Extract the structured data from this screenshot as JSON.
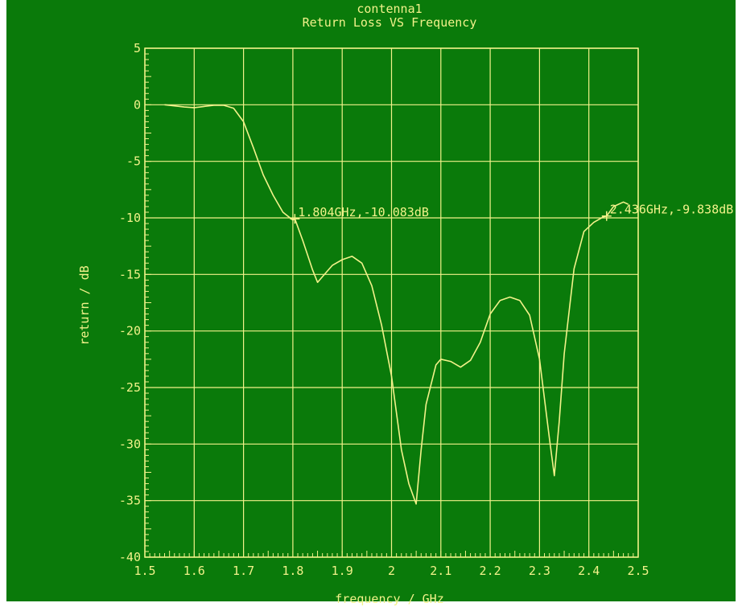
{
  "colors": {
    "background": "#0a7a0a",
    "foreground": "#f2f28a",
    "border": "#ffffff"
  },
  "chart_data": {
    "type": "line",
    "title": "contenna1",
    "subtitle": "Return Loss VS Frequency",
    "xlabel": "frequency / GHz",
    "ylabel": "return / dB",
    "xlim": [
      1.5,
      2.5
    ],
    "ylim": [
      -40,
      5
    ],
    "x_ticks": [
      "1.5",
      "1.6",
      "1.7",
      "1.8",
      "1.9",
      "2",
      "2.1",
      "2.2",
      "2.3",
      "2.4",
      "2.5"
    ],
    "y_ticks": [
      "5",
      "0",
      "-5",
      "-10",
      "-15",
      "-20",
      "-25",
      "-30",
      "-35",
      "-40"
    ],
    "grid": true,
    "series": [
      {
        "x": [
          1.54,
          1.56,
          1.58,
          1.6,
          1.62,
          1.64,
          1.66,
          1.68,
          1.7,
          1.72,
          1.74,
          1.76,
          1.78,
          1.8,
          1.804,
          1.82,
          1.84,
          1.85,
          1.86,
          1.88,
          1.9,
          1.92,
          1.94,
          1.96,
          1.98,
          2.0,
          2.02,
          2.035,
          2.05,
          2.06,
          2.07,
          2.09,
          2.1,
          2.12,
          2.14,
          2.16,
          2.18,
          2.2,
          2.22,
          2.24,
          2.26,
          2.28,
          2.3,
          2.32,
          2.33,
          2.34,
          2.35,
          2.37,
          2.39,
          2.41,
          2.43,
          2.436,
          2.45,
          2.47,
          2.48
        ],
        "y": [
          0.0,
          -0.1,
          -0.2,
          -0.25,
          -0.15,
          -0.05,
          -0.05,
          -0.3,
          -1.5,
          -3.8,
          -6.2,
          -8.0,
          -9.5,
          -10.2,
          -10.083,
          -12.0,
          -14.6,
          -15.7,
          -15.2,
          -14.2,
          -13.7,
          -13.4,
          -14.0,
          -16.0,
          -19.5,
          -24.0,
          -30.5,
          -33.5,
          -35.3,
          -30.5,
          -26.5,
          -23.0,
          -22.5,
          -22.7,
          -23.2,
          -22.6,
          -21.0,
          -18.5,
          -17.3,
          -17.0,
          -17.3,
          -18.6,
          -22.5,
          -29.5,
          -32.8,
          -28.0,
          -22.0,
          -14.5,
          -11.2,
          -10.4,
          -9.9,
          -9.838,
          -9.0,
          -8.6,
          -8.8
        ]
      }
    ],
    "markers": [
      {
        "x": 1.804,
        "y": -10.083,
        "label": "1.804GHz,-10.083dB"
      },
      {
        "x": 2.436,
        "y": -9.838,
        "label": "2.436GHz,-9.838dB"
      }
    ]
  }
}
